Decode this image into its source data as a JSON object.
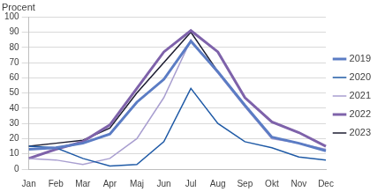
{
  "chart_data": {
    "type": "line",
    "y_label": "Procent",
    "categories": [
      "Jan",
      "Feb",
      "Mar",
      "Apr",
      "Maj",
      "Jun",
      "Jul",
      "Aug",
      "Sep",
      "Okt",
      "Nov",
      "Dec"
    ],
    "series": [
      {
        "name": "2019",
        "color": "#5b7cc4",
        "values": [
          13,
          14,
          17,
          23,
          44,
          59,
          84,
          64,
          42,
          21,
          17,
          12
        ]
      },
      {
        "name": "2020",
        "color": "#1f5aa6",
        "values": [
          15,
          14,
          7,
          2,
          3,
          18,
          53,
          30,
          18,
          14,
          8,
          6
        ]
      },
      {
        "name": "2021",
        "color": "#a99fd0",
        "values": [
          7,
          6,
          3,
          7,
          20,
          47,
          85,
          63,
          41,
          20,
          17,
          13
        ]
      },
      {
        "name": "2022",
        "color": "#7e62aa",
        "values": [
          7,
          13,
          18,
          29,
          53,
          77,
          91,
          77,
          47,
          31,
          24,
          15
        ]
      },
      {
        "name": "2023",
        "color": "#1c1c30",
        "values": [
          15,
          17,
          19,
          27,
          50,
          70,
          90,
          64,
          null,
          null,
          null,
          null
        ]
      }
    ],
    "ylim": [
      0,
      100
    ],
    "yticks": [
      0,
      10,
      20,
      30,
      40,
      50,
      60,
      70,
      80,
      90,
      100
    ],
    "grid": true,
    "legend": "right"
  }
}
